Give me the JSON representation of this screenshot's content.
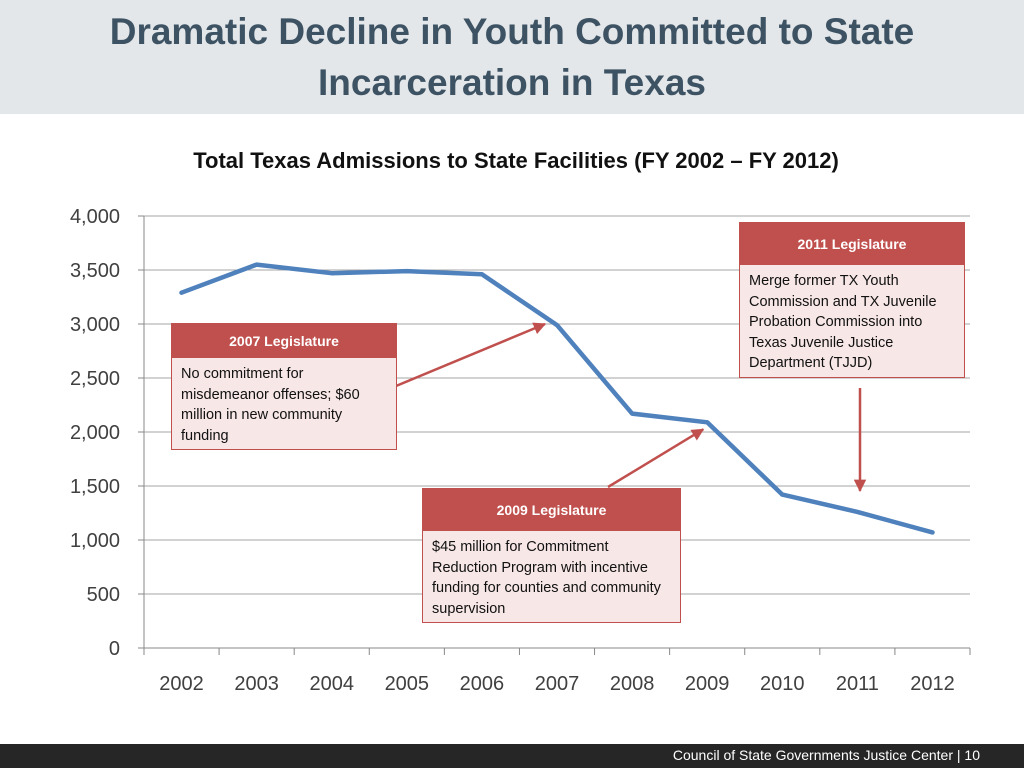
{
  "slide": {
    "title": "Dramatic Decline in Youth Committed to State Incarceration in Texas",
    "footer": "Council of State Governments Justice Center | 10"
  },
  "colors": {
    "series": "#4f81bd",
    "callout_header": "#c0504d",
    "callout_body": "#f8e7e7",
    "title_band": "#e4e7ea",
    "title_text": "#3d5363",
    "gridline": "#a6a6a6",
    "arrow": "#c0504d"
  },
  "chart_data": {
    "type": "line",
    "title": "Total Texas Admissions to State Facilities (FY 2002 – FY 2012)",
    "xlabel": "",
    "ylabel": "",
    "categories": [
      "2002",
      "2003",
      "2004",
      "2005",
      "2006",
      "2007",
      "2008",
      "2009",
      "2010",
      "2011",
      "2012"
    ],
    "series": [
      {
        "name": "Total Texas Admissions",
        "values": [
          3290,
          3550,
          3470,
          3490,
          3460,
          2990,
          2170,
          2090,
          1420,
          1260,
          1070
        ]
      }
    ],
    "ylim": [
      0,
      4000
    ],
    "yticks": [
      0,
      500,
      1000,
      1500,
      2000,
      2500,
      3000,
      3500,
      4000
    ],
    "ytick_labels": [
      "0",
      "500",
      "1,000",
      "1,500",
      "2,000",
      "2,500",
      "3,000",
      "3,500",
      "4,000"
    ],
    "grid": true,
    "legend": "none"
  },
  "annotations": [
    {
      "id": "2007",
      "header": "2007 Legislature",
      "body": "No commitment for misdemeanor offenses; $60 million in new community funding",
      "arrow_year": "2007",
      "arrow_value": 3000
    },
    {
      "id": "2009",
      "header": "2009 Legislature",
      "body": "$45 million for Commitment Reduction Program with incentive funding for counties and community supervision",
      "arrow_year": "2009",
      "arrow_value": 2080
    },
    {
      "id": "2011",
      "header": "2011 Legislature",
      "body": "Merge former TX Youth Commission and TX Juvenile Probation Commission into Texas Juvenile Justice Department (TJJD)",
      "arrow_year": "2011",
      "arrow_value": 1270
    }
  ]
}
